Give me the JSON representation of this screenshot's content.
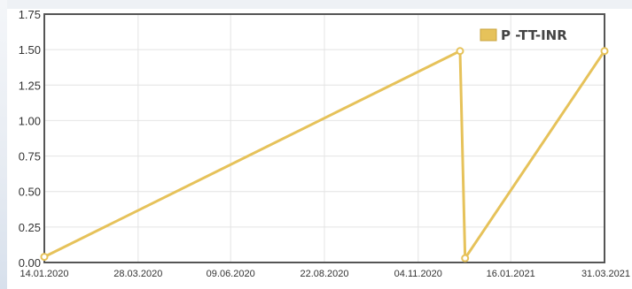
{
  "chart_data": {
    "type": "line",
    "title": "",
    "xlabel": "",
    "ylabel": "",
    "ylim": [
      0,
      1.75
    ],
    "xlim": [
      "2020-01-14",
      "2021-03-31"
    ],
    "yticks": [
      "0.00",
      "0.25",
      "0.50",
      "0.75",
      "1.00",
      "1.25",
      "1.50",
      "1.75"
    ],
    "xticks": [
      "14.01.2020",
      "28.03.2020",
      "09.06.2020",
      "22.08.2020",
      "04.11.2020",
      "16.01.2021",
      "31.03.2021"
    ],
    "grid": true,
    "legend": "top-right",
    "series": [
      {
        "name": "P -TT-INR",
        "color": "#e6c25a",
        "x": [
          "2020-01-14",
          "2020-12-07",
          "2020-12-11",
          "2021-03-31"
        ],
        "y": [
          0.04,
          1.49,
          0.03,
          1.49
        ]
      }
    ]
  }
}
